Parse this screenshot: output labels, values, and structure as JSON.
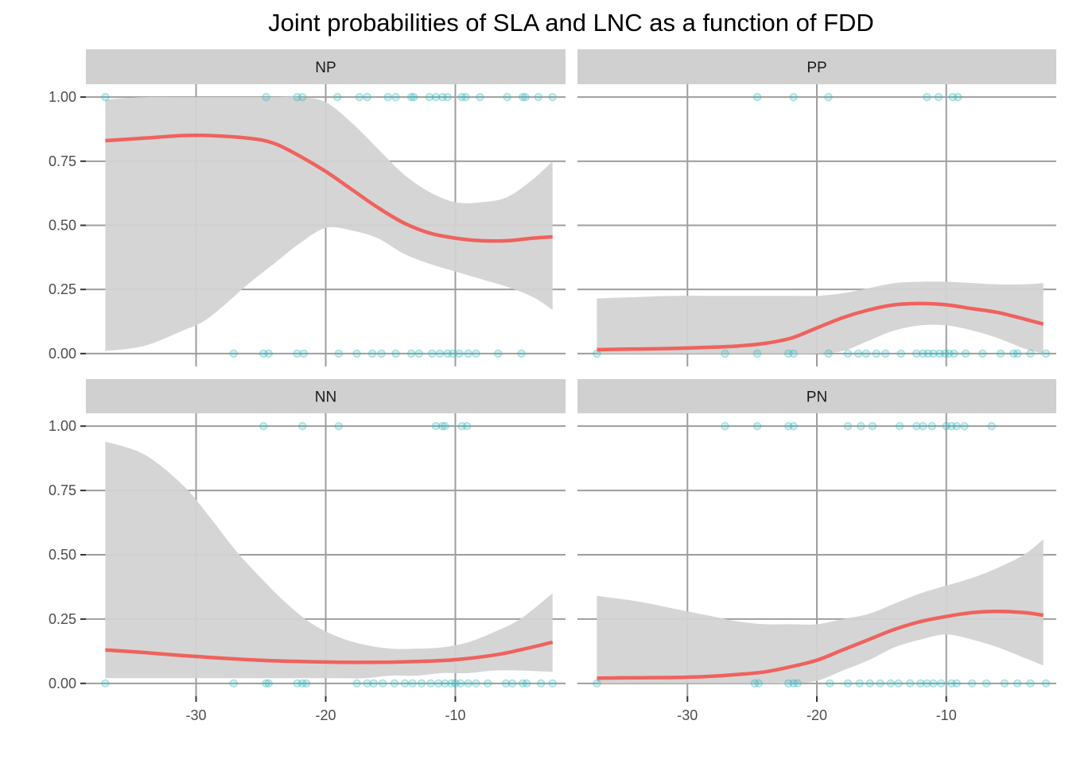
{
  "chart_data": {
    "type": "scatter",
    "title": "Joint probabilities of SLA and LNC as a function of FDD",
    "xlabel": "",
    "ylabel": "",
    "xlim": [
      -38.5,
      -1.5
    ],
    "ylim": [
      -0.05,
      1.05
    ],
    "x_ticks": [
      -30,
      -20,
      -10
    ],
    "x_tick_labels": [
      "-30",
      "-20",
      "-10"
    ],
    "y_ticks": [
      0,
      0.25,
      0.5,
      0.75,
      1
    ],
    "y_tick_labels": [
      "0.00",
      "0.25",
      "0.50",
      "0.75",
      "1.00"
    ],
    "grid": true,
    "legend": "none",
    "colors": {
      "points": "#26b7bd",
      "fit_line": "#f0625d",
      "ribbon": "#d3d3d3",
      "strip": "#d0d0d0",
      "gridline": "#9e9e9e"
    },
    "panels": [
      {
        "label": "NP",
        "points_at_1": [
          -37,
          -24.6,
          -22.2,
          -21.8,
          -19.1,
          -17.4,
          -16.8,
          -15.2,
          -14.6,
          -13.4,
          -13.2,
          -12.0,
          -11.5,
          -11.0,
          -10.6,
          -9.5,
          -9.2,
          -8.1,
          -6.0,
          -4.8,
          -4.6,
          -3.6,
          -2.5
        ],
        "points_at_0": [
          -27.1,
          -24.8,
          -24.4,
          -22.2,
          -21.7,
          -19.0,
          -17.6,
          -16.4,
          -15.7,
          -14.6,
          -13.4,
          -12.8,
          -11.8,
          -11.2,
          -10.6,
          -10.2,
          -9.7,
          -9.0,
          -8.4,
          -6.7,
          -4.9
        ],
        "fit": {
          "x": [
            -37,
            -34,
            -31,
            -29,
            -26,
            -24,
            -22,
            -20,
            -18,
            -16,
            -14,
            -12,
            -10,
            -8,
            -6,
            -4,
            -2.5
          ],
          "y": [
            0.83,
            0.84,
            0.85,
            0.85,
            0.84,
            0.82,
            0.77,
            0.71,
            0.64,
            0.57,
            0.51,
            0.47,
            0.45,
            0.44,
            0.44,
            0.45,
            0.455
          ]
        },
        "ribbon": {
          "x": [
            -37,
            -34,
            -31,
            -29,
            -26,
            -24,
            -22,
            -20,
            -18,
            -16,
            -14,
            -12,
            -10,
            -8,
            -6,
            -4,
            -2.5
          ],
          "lower": [
            0.01,
            0.03,
            0.09,
            0.14,
            0.27,
            0.35,
            0.43,
            0.49,
            0.48,
            0.45,
            0.39,
            0.35,
            0.32,
            0.29,
            0.26,
            0.22,
            0.17
          ],
          "upper": [
            0.99,
            1.0,
            1.0,
            1.0,
            1.0,
            1.0,
            1.0,
            0.98,
            0.9,
            0.8,
            0.7,
            0.63,
            0.59,
            0.59,
            0.61,
            0.68,
            0.75
          ]
        }
      },
      {
        "label": "PP",
        "points_at_1": [
          -24.6,
          -21.8,
          -19.1,
          -11.5,
          -10.6,
          -9.5,
          -9.1
        ],
        "points_at_0": [
          -37,
          -27.1,
          -24.6,
          -22.2,
          -21.8,
          -19.1,
          -17.6,
          -16.8,
          -16.2,
          -15.4,
          -14.7,
          -13.5,
          -12.3,
          -11.8,
          -11.4,
          -11.0,
          -10.5,
          -10.1,
          -9.8,
          -9.4,
          -8.5,
          -7.2,
          -5.8,
          -4.8,
          -4.5,
          -3.5,
          -2.3
        ],
        "fit": {
          "x": [
            -37,
            -34,
            -31,
            -28,
            -26,
            -24,
            -22,
            -20,
            -18,
            -16,
            -14,
            -12,
            -10,
            -8,
            -6,
            -4,
            -2.5
          ],
          "y": [
            0.015,
            0.018,
            0.02,
            0.025,
            0.03,
            0.04,
            0.06,
            0.1,
            0.14,
            0.17,
            0.19,
            0.195,
            0.19,
            0.175,
            0.16,
            0.135,
            0.115
          ]
        },
        "ribbon": {
          "x": [
            -37,
            -34,
            -31,
            -28,
            -26,
            -24,
            -22,
            -20,
            -18,
            -16,
            -14,
            -12,
            -10,
            -8,
            -6,
            -4,
            -2.5
          ],
          "lower": [
            0,
            0,
            0,
            0,
            0,
            0,
            0,
            0,
            0.01,
            0.05,
            0.09,
            0.11,
            0.11,
            0.09,
            0.06,
            0.02,
            0
          ],
          "upper": [
            0.215,
            0.22,
            0.225,
            0.225,
            0.225,
            0.225,
            0.225,
            0.225,
            0.235,
            0.255,
            0.275,
            0.28,
            0.28,
            0.275,
            0.27,
            0.27,
            0.275
          ]
        }
      },
      {
        "label": "NN",
        "points_at_1": [
          -24.8,
          -21.8,
          -19.0,
          -11.5,
          -11.0,
          -10.8,
          -9.5,
          -9.1
        ],
        "points_at_0": [
          -37,
          -27.1,
          -24.6,
          -24.4,
          -22.2,
          -21.8,
          -21.5,
          -17.6,
          -16.8,
          -16.3,
          -15.6,
          -14.7,
          -13.9,
          -13.3,
          -12.6,
          -11.9,
          -11.3,
          -10.8,
          -10.3,
          -10.0,
          -9.6,
          -9.0,
          -8.4,
          -7.5,
          -6.1,
          -5.6,
          -4.8,
          -4.5,
          -3.4,
          -2.5
        ],
        "fit": {
          "x": [
            -37,
            -34,
            -31,
            -28,
            -25,
            -22,
            -19,
            -16,
            -13,
            -10,
            -7,
            -5,
            -2.5
          ],
          "y": [
            0.13,
            0.12,
            0.108,
            0.098,
            0.09,
            0.085,
            0.082,
            0.082,
            0.085,
            0.092,
            0.11,
            0.13,
            0.16
          ]
        },
        "ribbon": {
          "x": [
            -37,
            -34,
            -31,
            -29,
            -27,
            -25,
            -23,
            -21,
            -19,
            -17,
            -15,
            -13,
            -11,
            -9,
            -7,
            -5,
            -2.5
          ],
          "lower": [
            0.02,
            0.02,
            0.02,
            0.02,
            0.02,
            0.02,
            0.02,
            0.02,
            0.02,
            0.02,
            0.03,
            0.03,
            0.04,
            0.04,
            0.05,
            0.05,
            0.045
          ],
          "upper": [
            0.94,
            0.89,
            0.77,
            0.65,
            0.52,
            0.41,
            0.31,
            0.23,
            0.18,
            0.15,
            0.135,
            0.135,
            0.14,
            0.16,
            0.2,
            0.25,
            0.35
          ]
        }
      },
      {
        "label": "PN",
        "points_at_1": [
          -27.1,
          -24.6,
          -22.2,
          -21.8,
          -17.6,
          -16.6,
          -15.7,
          -13.6,
          -12.3,
          -11.8,
          -11.1,
          -10.0,
          -9.6,
          -9.2,
          -8.6,
          -6.5
        ],
        "points_at_0": [
          -37,
          -24.8,
          -24.5,
          -22.2,
          -21.8,
          -21.5,
          -19.0,
          -17.6,
          -16.7,
          -15.9,
          -15.1,
          -14.3,
          -13.7,
          -12.8,
          -12.0,
          -11.5,
          -11.0,
          -10.4,
          -9.6,
          -9.2,
          -8.0,
          -6.9,
          -5.5,
          -4.5,
          -3.5,
          -2.3
        ],
        "fit": {
          "x": [
            -37,
            -34,
            -31,
            -28,
            -26,
            -24,
            -22,
            -20,
            -18,
            -16,
            -14,
            -12,
            -10,
            -8,
            -6,
            -4,
            -2.5
          ],
          "y": [
            0.02,
            0.022,
            0.023,
            0.028,
            0.035,
            0.045,
            0.065,
            0.09,
            0.13,
            0.17,
            0.21,
            0.24,
            0.26,
            0.275,
            0.28,
            0.275,
            0.265
          ]
        },
        "ribbon": {
          "x": [
            -37,
            -34,
            -31,
            -28,
            -26,
            -24,
            -22,
            -20,
            -18,
            -16,
            -14,
            -12,
            -10,
            -8,
            -6,
            -4,
            -2.5
          ],
          "lower": [
            0,
            0,
            0,
            0,
            0,
            0,
            0,
            0.01,
            0.05,
            0.09,
            0.14,
            0.17,
            0.19,
            0.17,
            0.14,
            0.1,
            0.07
          ],
          "upper": [
            0.34,
            0.32,
            0.29,
            0.26,
            0.24,
            0.23,
            0.23,
            0.23,
            0.25,
            0.27,
            0.31,
            0.35,
            0.38,
            0.41,
            0.45,
            0.5,
            0.56
          ]
        }
      }
    ]
  }
}
